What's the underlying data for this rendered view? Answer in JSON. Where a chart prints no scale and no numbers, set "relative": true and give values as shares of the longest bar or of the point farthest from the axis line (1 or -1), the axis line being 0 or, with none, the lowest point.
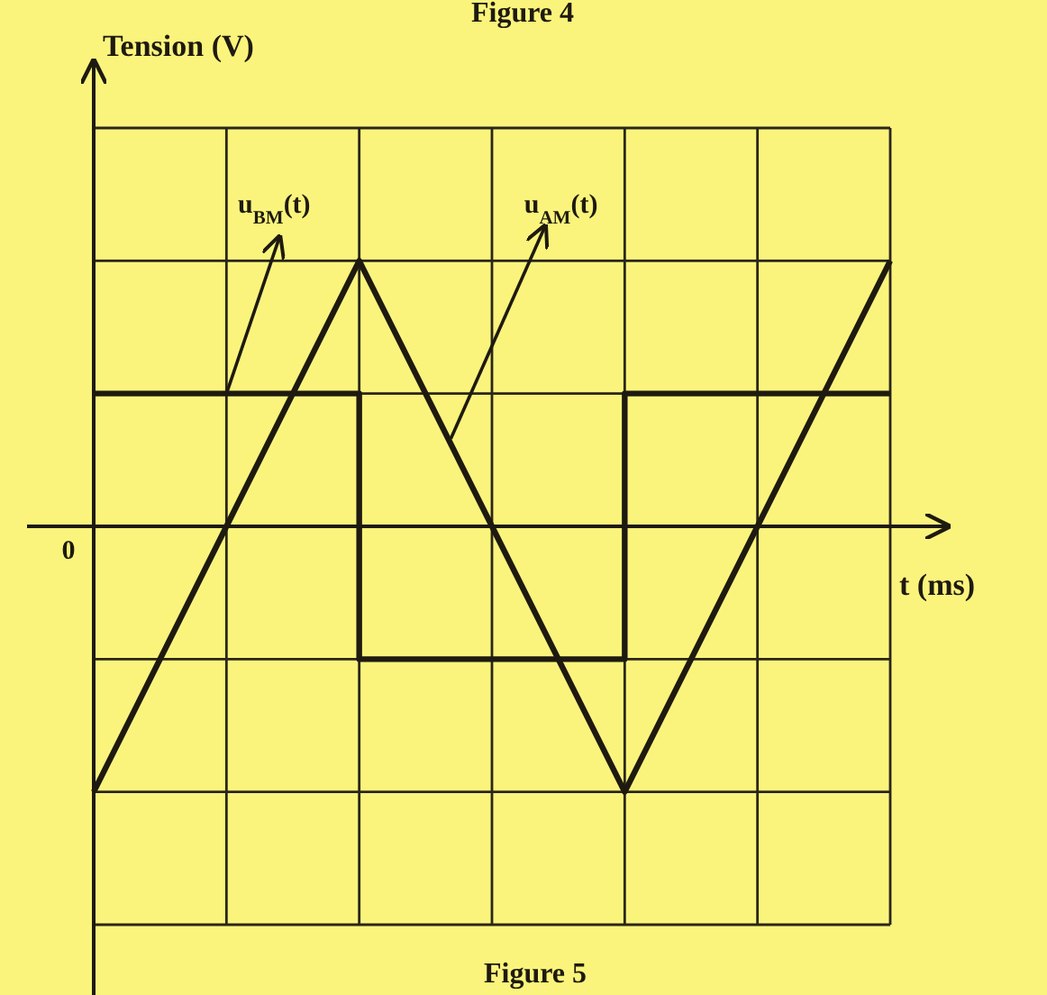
{
  "chart_data": {
    "type": "line",
    "relative": true,
    "xlabel": "t (ms)",
    "categories": [
      null,
      null,
      null,
      null,
      null,
      null,
      null
    ],
    "series": [
      {
        "name": "u$_{BM}$(t)",
        "type": "step",
        "color": "#1e1a10",
        "values": [
          0.5,
          0.5,
          -0.5,
          -0.5,
          0.5,
          0.5,
          0.5
        ]
      },
      {
        "name": "u$_{AM}$(t)",
        "color": "#1e1a10",
        "values": [
          -1,
          0,
          1,
          0,
          -1,
          0,
          1
        ]
      }
    ],
    "grid": true,
    "annotations": [
      "Figure 4",
      "Tension (V)",
      "0",
      "Figure 5"
    ]
  }
}
